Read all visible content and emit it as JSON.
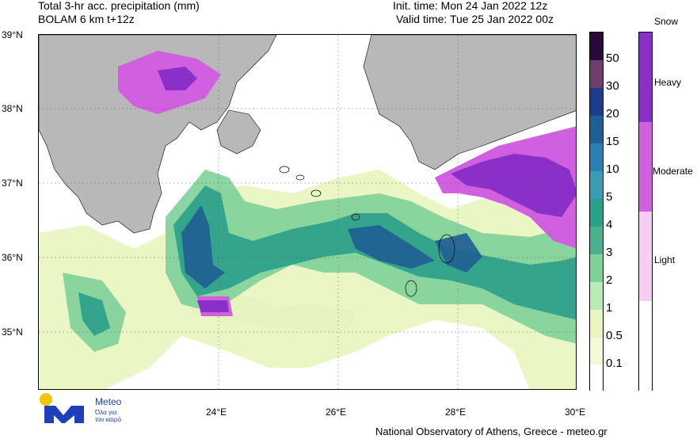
{
  "header": {
    "title_line1": "Total 3-hr acc. precipitation (mm)",
    "title_line2": "BOLAM 6 km t+12z",
    "init_time": "Init. time: Mon 24 Jan 2022 12z",
    "valid_time": "Valid time: Tue 25 Jan 2022 00z"
  },
  "axes": {
    "lat_labels": [
      "39°N",
      "38°N",
      "37°N",
      "36°N",
      "35°N"
    ],
    "lon_labels": [
      "24°E",
      "26°E",
      "28°E",
      "30°E"
    ]
  },
  "precip_legend": {
    "labels": [
      "50",
      "30",
      "20",
      "15",
      "10",
      "5",
      "4",
      "3",
      "2",
      "1",
      "0.5",
      "0.1"
    ],
    "colors": [
      "#2a0a3a",
      "#6e3f6a",
      "#1c3d8c",
      "#1f5f94",
      "#2a7fb0",
      "#3a9bb5",
      "#2aa089",
      "#4cb08e",
      "#7fd19a",
      "#b8ebb5",
      "#e9f5c1",
      "#f6f8d8",
      "#ffffff"
    ]
  },
  "snow_legend": {
    "title": "Snow",
    "labels": [
      "Heavy",
      "Moderate",
      "Light"
    ],
    "colors": [
      "#8b2fc9",
      "#d160e0",
      "#f8cdf3",
      "#ffffff"
    ]
  },
  "logo": {
    "name": "Meteo",
    "tagline_1": "Όλα για",
    "tagline_2": "τον καιρό",
    "dot_color": "#f5c400",
    "mark_color": "#1f3fbf"
  },
  "footer": {
    "credit": "National Observatory of Athens, Greece - meteo.gr"
  }
}
